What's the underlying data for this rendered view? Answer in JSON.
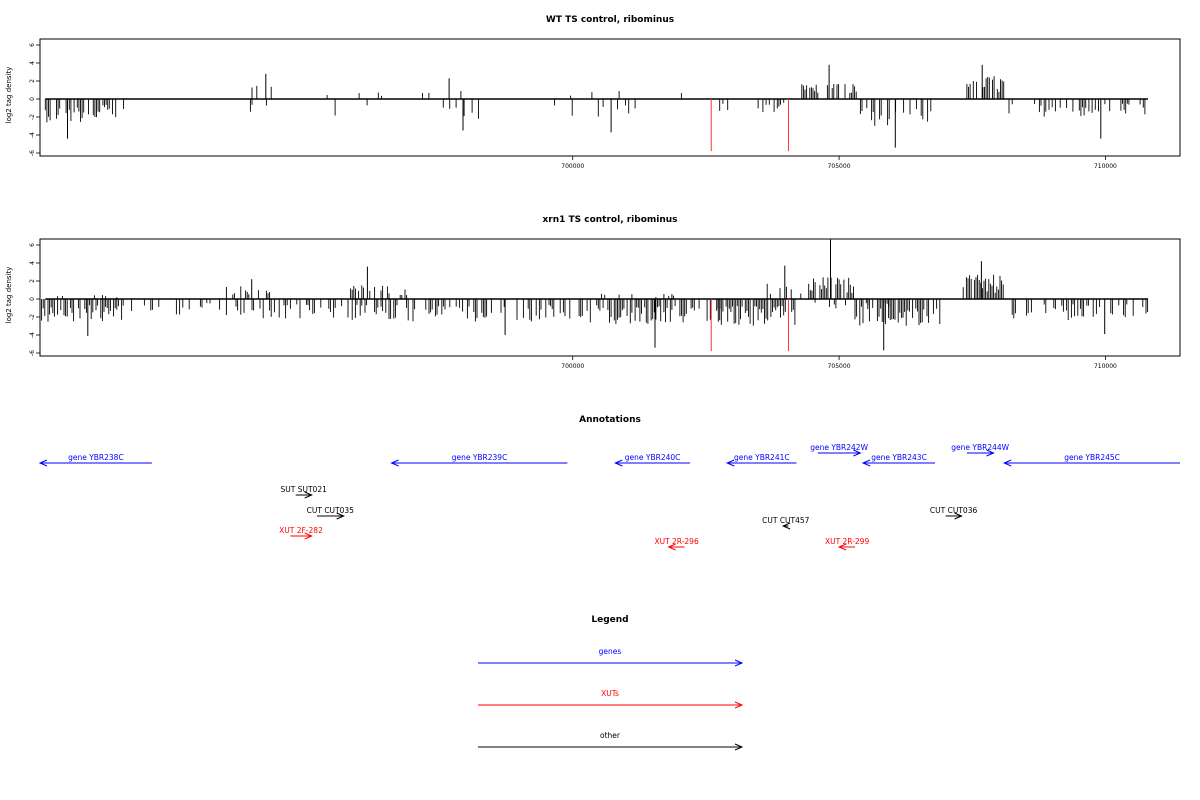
{
  "colors": {
    "gene": "#0000ff",
    "xut": "#ff0000",
    "other": "#000000",
    "marker": "#ff3333",
    "bar": "#000000"
  },
  "chart_data": [
    {
      "type": "bar",
      "title": "WT TS control, ribominus",
      "ylabel": "log2 tag density",
      "xlim": [
        690000,
        711400
      ],
      "ylim": [
        -6,
        7
      ],
      "yticks": [
        -6,
        -4,
        -2,
        0,
        2,
        4,
        6
      ],
      "xticks": [
        700000,
        705000,
        710000
      ],
      "markers": [
        702600,
        704050
      ],
      "grid": false,
      "description": "tag density per position along chromosome; positive = upward bars, negative = downward bars",
      "segments": [
        {
          "x0": 690100,
          "x1": 691450,
          "amp": -2.6,
          "dens": 0.7,
          "spike": -4.4
        },
        {
          "x0": 691450,
          "x1": 691600,
          "amp": -1.8,
          "dens": 0.3
        },
        {
          "x0": 693950,
          "x1": 694450,
          "amp": 2.0,
          "dens": 0.25,
          "spike": 2.8
        },
        {
          "x0": 693950,
          "x1": 694400,
          "amp": -1.5,
          "dens": 0.2
        },
        {
          "x0": 695300,
          "x1": 696500,
          "amp": 1.0,
          "dens": 0.12
        },
        {
          "x0": 695300,
          "x1": 696500,
          "amp": -2.0,
          "dens": 0.12
        },
        {
          "x0": 697000,
          "x1": 698000,
          "amp": 1.2,
          "dens": 0.08,
          "spike": 2.3
        },
        {
          "x0": 697000,
          "x1": 698400,
          "amp": -2.2,
          "dens": 0.12,
          "spike": -3.5
        },
        {
          "x0": 699600,
          "x1": 700000,
          "amp": 1.0,
          "dens": 0.08
        },
        {
          "x0": 699600,
          "x1": 700100,
          "amp": -2.2,
          "dens": 0.15
        },
        {
          "x0": 700300,
          "x1": 701300,
          "amp": 1.0,
          "dens": 0.05
        },
        {
          "x0": 700300,
          "x1": 701300,
          "amp": -2.5,
          "dens": 0.1,
          "spike": -3.7
        },
        {
          "x0": 701800,
          "x1": 702300,
          "amp": 1.0,
          "dens": 0.05
        },
        {
          "x0": 701800,
          "x1": 702300,
          "amp": -2.0,
          "dens": 0.12
        },
        {
          "x0": 702700,
          "x1": 703800,
          "amp": -1.5,
          "dens": 0.15
        },
        {
          "x0": 703600,
          "x1": 704100,
          "amp": -1.2,
          "dens": 0.15
        },
        {
          "x0": 704300,
          "x1": 705400,
          "amp": 1.8,
          "dens": 0.55,
          "spike": 3.8
        },
        {
          "x0": 705400,
          "x1": 706800,
          "amp": -3.0,
          "dens": 0.55,
          "spike": -5.4
        },
        {
          "x0": 707400,
          "x1": 708100,
          "amp": 2.6,
          "dens": 0.6,
          "spike": 3.8
        },
        {
          "x0": 708100,
          "x1": 709300,
          "amp": -2.2,
          "dens": 0.35
        },
        {
          "x0": 709300,
          "x1": 710800,
          "amp": -2.0,
          "dens": 0.25,
          "spike": -4.4
        }
      ]
    },
    {
      "type": "bar",
      "title": "xrn1 TS control, ribominus",
      "ylabel": "log2 tag density",
      "xlim": [
        690000,
        711400
      ],
      "ylim": [
        -6,
        7
      ],
      "yticks": [
        -6,
        -4,
        -2,
        0,
        2,
        4,
        6
      ],
      "xticks": [
        700000,
        705000,
        710000
      ],
      "markers": [
        702600,
        704050
      ],
      "grid": false,
      "description": "tag density per position along chromosome; positive = upward bars, negative = downward bars",
      "segments": [
        {
          "x0": 690000,
          "x1": 691600,
          "amp": -2.6,
          "dens": 0.7,
          "spike": -4.1
        },
        {
          "x0": 690000,
          "x1": 691600,
          "amp": 0.5,
          "dens": 0.1
        },
        {
          "x0": 691600,
          "x1": 693500,
          "amp": -1.8,
          "dens": 0.35
        },
        {
          "x0": 693500,
          "x1": 694500,
          "amp": 1.5,
          "dens": 0.25,
          "spike": 2.2
        },
        {
          "x0": 693500,
          "x1": 695800,
          "amp": -2.2,
          "dens": 0.4
        },
        {
          "x0": 695800,
          "x1": 696900,
          "amp": 1.6,
          "dens": 0.35,
          "spike": 3.6
        },
        {
          "x0": 695800,
          "x1": 700000,
          "amp": -2.5,
          "dens": 0.45,
          "spike": -4.0
        },
        {
          "x0": 700000,
          "x1": 702800,
          "amp": -2.8,
          "dens": 0.5,
          "spike": -5.4
        },
        {
          "x0": 700000,
          "x1": 702800,
          "amp": 0.6,
          "dens": 0.1
        },
        {
          "x0": 702700,
          "x1": 704200,
          "amp": -3.0,
          "dens": 0.75
        },
        {
          "x0": 703500,
          "x1": 704300,
          "amp": 1.8,
          "dens": 0.45,
          "spike": 3.7
        },
        {
          "x0": 704400,
          "x1": 705300,
          "amp": 2.6,
          "dens": 0.8,
          "spike": 6.6
        },
        {
          "x0": 704400,
          "x1": 706000,
          "amp": -1.2,
          "dens": 0.2
        },
        {
          "x0": 705300,
          "x1": 706900,
          "amp": -3.2,
          "dens": 0.6,
          "spike": -5.7
        },
        {
          "x0": 707300,
          "x1": 708100,
          "amp": 2.7,
          "dens": 0.8,
          "spike": 4.2
        },
        {
          "x0": 708100,
          "x1": 709500,
          "amp": -2.4,
          "dens": 0.5
        },
        {
          "x0": 709500,
          "x1": 710800,
          "amp": -2.2,
          "dens": 0.4,
          "spike": -3.9
        }
      ]
    }
  ],
  "annotations": {
    "title": "Annotations",
    "features": [
      {
        "label": "gene YBR238C",
        "start": 690000,
        "end": 692100,
        "strand": "-",
        "kind": "gene",
        "row": 0
      },
      {
        "label": "gene YBR239C",
        "start": 696600,
        "end": 699900,
        "strand": "-",
        "kind": "gene",
        "row": 0
      },
      {
        "label": "gene YBR240C",
        "start": 700800,
        "end": 702200,
        "strand": "-",
        "kind": "gene",
        "row": 0
      },
      {
        "label": "gene YBR241C",
        "start": 702900,
        "end": 704200,
        "strand": "-",
        "kind": "gene",
        "row": 0
      },
      {
        "label": "gene YBR242W",
        "start": 704600,
        "end": 705400,
        "strand": "+",
        "kind": "gene",
        "row": 1
      },
      {
        "label": "gene YBR243C",
        "start": 705450,
        "end": 706800,
        "strand": "-",
        "kind": "gene",
        "row": 0
      },
      {
        "label": "gene YBR244W",
        "start": 707400,
        "end": 707900,
        "strand": "+",
        "kind": "gene",
        "row": 1
      },
      {
        "label": "gene YBR245C",
        "start": 708100,
        "end": 711400,
        "strand": "-",
        "kind": "gene",
        "row": 0
      },
      {
        "label": "SUT SUT021",
        "start": 694800,
        "end": 695100,
        "strand": "+",
        "kind": "other",
        "row": 2
      },
      {
        "label": "CUT CUT035",
        "start": 695200,
        "end": 695700,
        "strand": "+",
        "kind": "other",
        "row": 3
      },
      {
        "label": "XUT 2F-282",
        "start": 694700,
        "end": 695100,
        "strand": "+",
        "kind": "xut",
        "row": 4
      },
      {
        "label": "CUT CUT457",
        "start": 703950,
        "end": 704050,
        "strand": "-",
        "kind": "other",
        "row": 5
      },
      {
        "label": "XUT 2R-296",
        "start": 701800,
        "end": 702100,
        "strand": "-",
        "kind": "xut",
        "row": 6
      },
      {
        "label": "XUT 2R-299",
        "start": 705000,
        "end": 705300,
        "strand": "-",
        "kind": "xut",
        "row": 6
      },
      {
        "label": "CUT CUT036",
        "start": 707000,
        "end": 707300,
        "strand": "+",
        "kind": "other",
        "row": 3
      }
    ]
  },
  "legend": {
    "title": "Legend",
    "items": [
      {
        "label": "genes",
        "kind": "gene"
      },
      {
        "label": "XUTs",
        "kind": "xut"
      },
      {
        "label": "other",
        "kind": "other"
      }
    ]
  }
}
